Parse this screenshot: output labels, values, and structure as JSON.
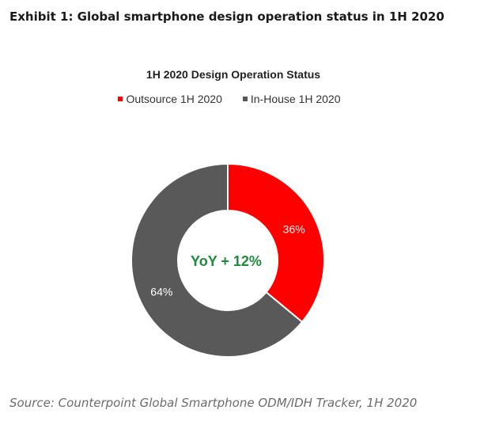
{
  "exhibit_title": "Exhibit 1: Global smartphone design operation status in 1H 2020",
  "source": "Source: Counterpoint Global Smartphone ODM/IDH Tracker, 1H 2020",
  "chart_data": {
    "type": "pie",
    "donut": true,
    "title": "1H 2020 Design Operation Status",
    "legend_position": "top",
    "center_label": "YoY + 12%",
    "center_label_color": "#1e8a3c",
    "slices": [
      {
        "name": "Outsource 1H 2020",
        "value": 36,
        "label": "36%",
        "color": "#ff0000"
      },
      {
        "name": "In-House 1H 2020",
        "value": 64,
        "label": "64%",
        "color": "#595959"
      }
    ]
  }
}
